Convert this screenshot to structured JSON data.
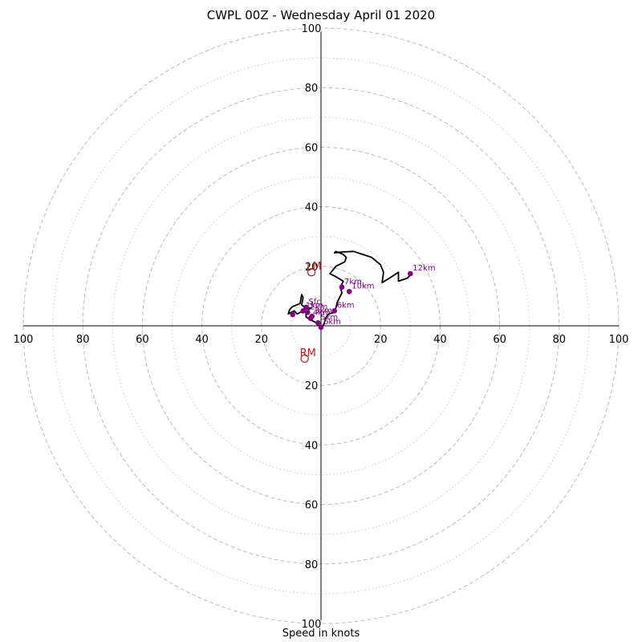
{
  "chart_data": {
    "type": "hodograph",
    "title": "CWPL 00Z - Wednesday April 01 2020",
    "xlabel": "Speed in knots",
    "rlim": [
      0,
      100
    ],
    "ring_major": [
      20,
      40,
      60,
      80,
      100
    ],
    "ring_minor": [
      10,
      30,
      50,
      70,
      90
    ],
    "tick_labels": [
      "20",
      "40",
      "60",
      "80",
      "100"
    ],
    "grid": true,
    "colors": {
      "trace": "#000000",
      "height_points": "#800080",
      "storm_motion": "#b22222",
      "grid": "#bbbbbb"
    },
    "trace": [
      [
        -5,
        7
      ],
      [
        -6,
        5
      ],
      [
        -8,
        4
      ],
      [
        -9,
        5
      ],
      [
        -11,
        4
      ],
      [
        -10.5,
        5.5
      ],
      [
        -9.5,
        6.5
      ],
      [
        -7,
        7.5
      ],
      [
        -6.5,
        10.5
      ],
      [
        -6,
        9.5
      ],
      [
        -6.5,
        7
      ],
      [
        -5,
        6
      ],
      [
        -3.5,
        6
      ],
      [
        -5,
        4.5
      ],
      [
        -5,
        3
      ],
      [
        -3.5,
        2
      ],
      [
        -1.5,
        1
      ],
      [
        0,
        -0.5
      ],
      [
        1,
        0.5
      ],
      [
        1.5,
        2.5
      ],
      [
        2.5,
        4
      ],
      [
        4.5,
        4.5
      ],
      [
        5,
        6
      ],
      [
        5.5,
        8
      ],
      [
        7,
        11
      ],
      [
        6.5,
        13
      ],
      [
        7.5,
        15
      ],
      [
        5,
        16.5
      ],
      [
        3,
        17.5
      ],
      [
        5,
        20
      ],
      [
        8,
        21.5
      ],
      [
        8.5,
        23
      ],
      [
        7.5,
        24
      ],
      [
        5,
        25
      ],
      [
        4.5,
        24.5
      ],
      [
        7,
        24.8
      ],
      [
        11,
        25
      ],
      [
        14,
        24
      ],
      [
        17,
        23
      ],
      [
        20,
        20.5
      ],
      [
        21,
        18
      ],
      [
        20.5,
        14.5
      ],
      [
        23,
        16
      ],
      [
        26,
        18
      ],
      [
        26,
        15
      ],
      [
        29,
        16
      ],
      [
        30,
        17
      ]
    ],
    "height_points": [
      {
        "label": "Sfc",
        "u": -5,
        "v": 6.2
      },
      {
        "label": "1km",
        "u": -6,
        "v": 5
      },
      {
        "label": "2km",
        "u": -4.5,
        "v": 4.5
      },
      {
        "label": "3km",
        "u": -3,
        "v": 3.2
      },
      {
        "label": "4km",
        "u": -3.5,
        "v": 2.5
      },
      {
        "label": "5km",
        "u": -1,
        "v": 1
      },
      {
        "label": "6km",
        "u": 0,
        "v": -0.5
      },
      {
        "label": "6km",
        "u": 4.5,
        "v": 5
      },
      {
        "label": "7km",
        "u": 7,
        "v": 13
      },
      {
        "label": "10km",
        "u": 9.5,
        "v": 11.5
      },
      {
        "label": "12km",
        "u": 30,
        "v": 17.5
      },
      {
        "label": "",
        "u": -9.5,
        "v": 3.8
      }
    ],
    "storm_motion": [
      {
        "label": "LM",
        "u": -3.2,
        "v": 18
      },
      {
        "label": "RM",
        "u": -5.5,
        "v": -11
      }
    ]
  }
}
